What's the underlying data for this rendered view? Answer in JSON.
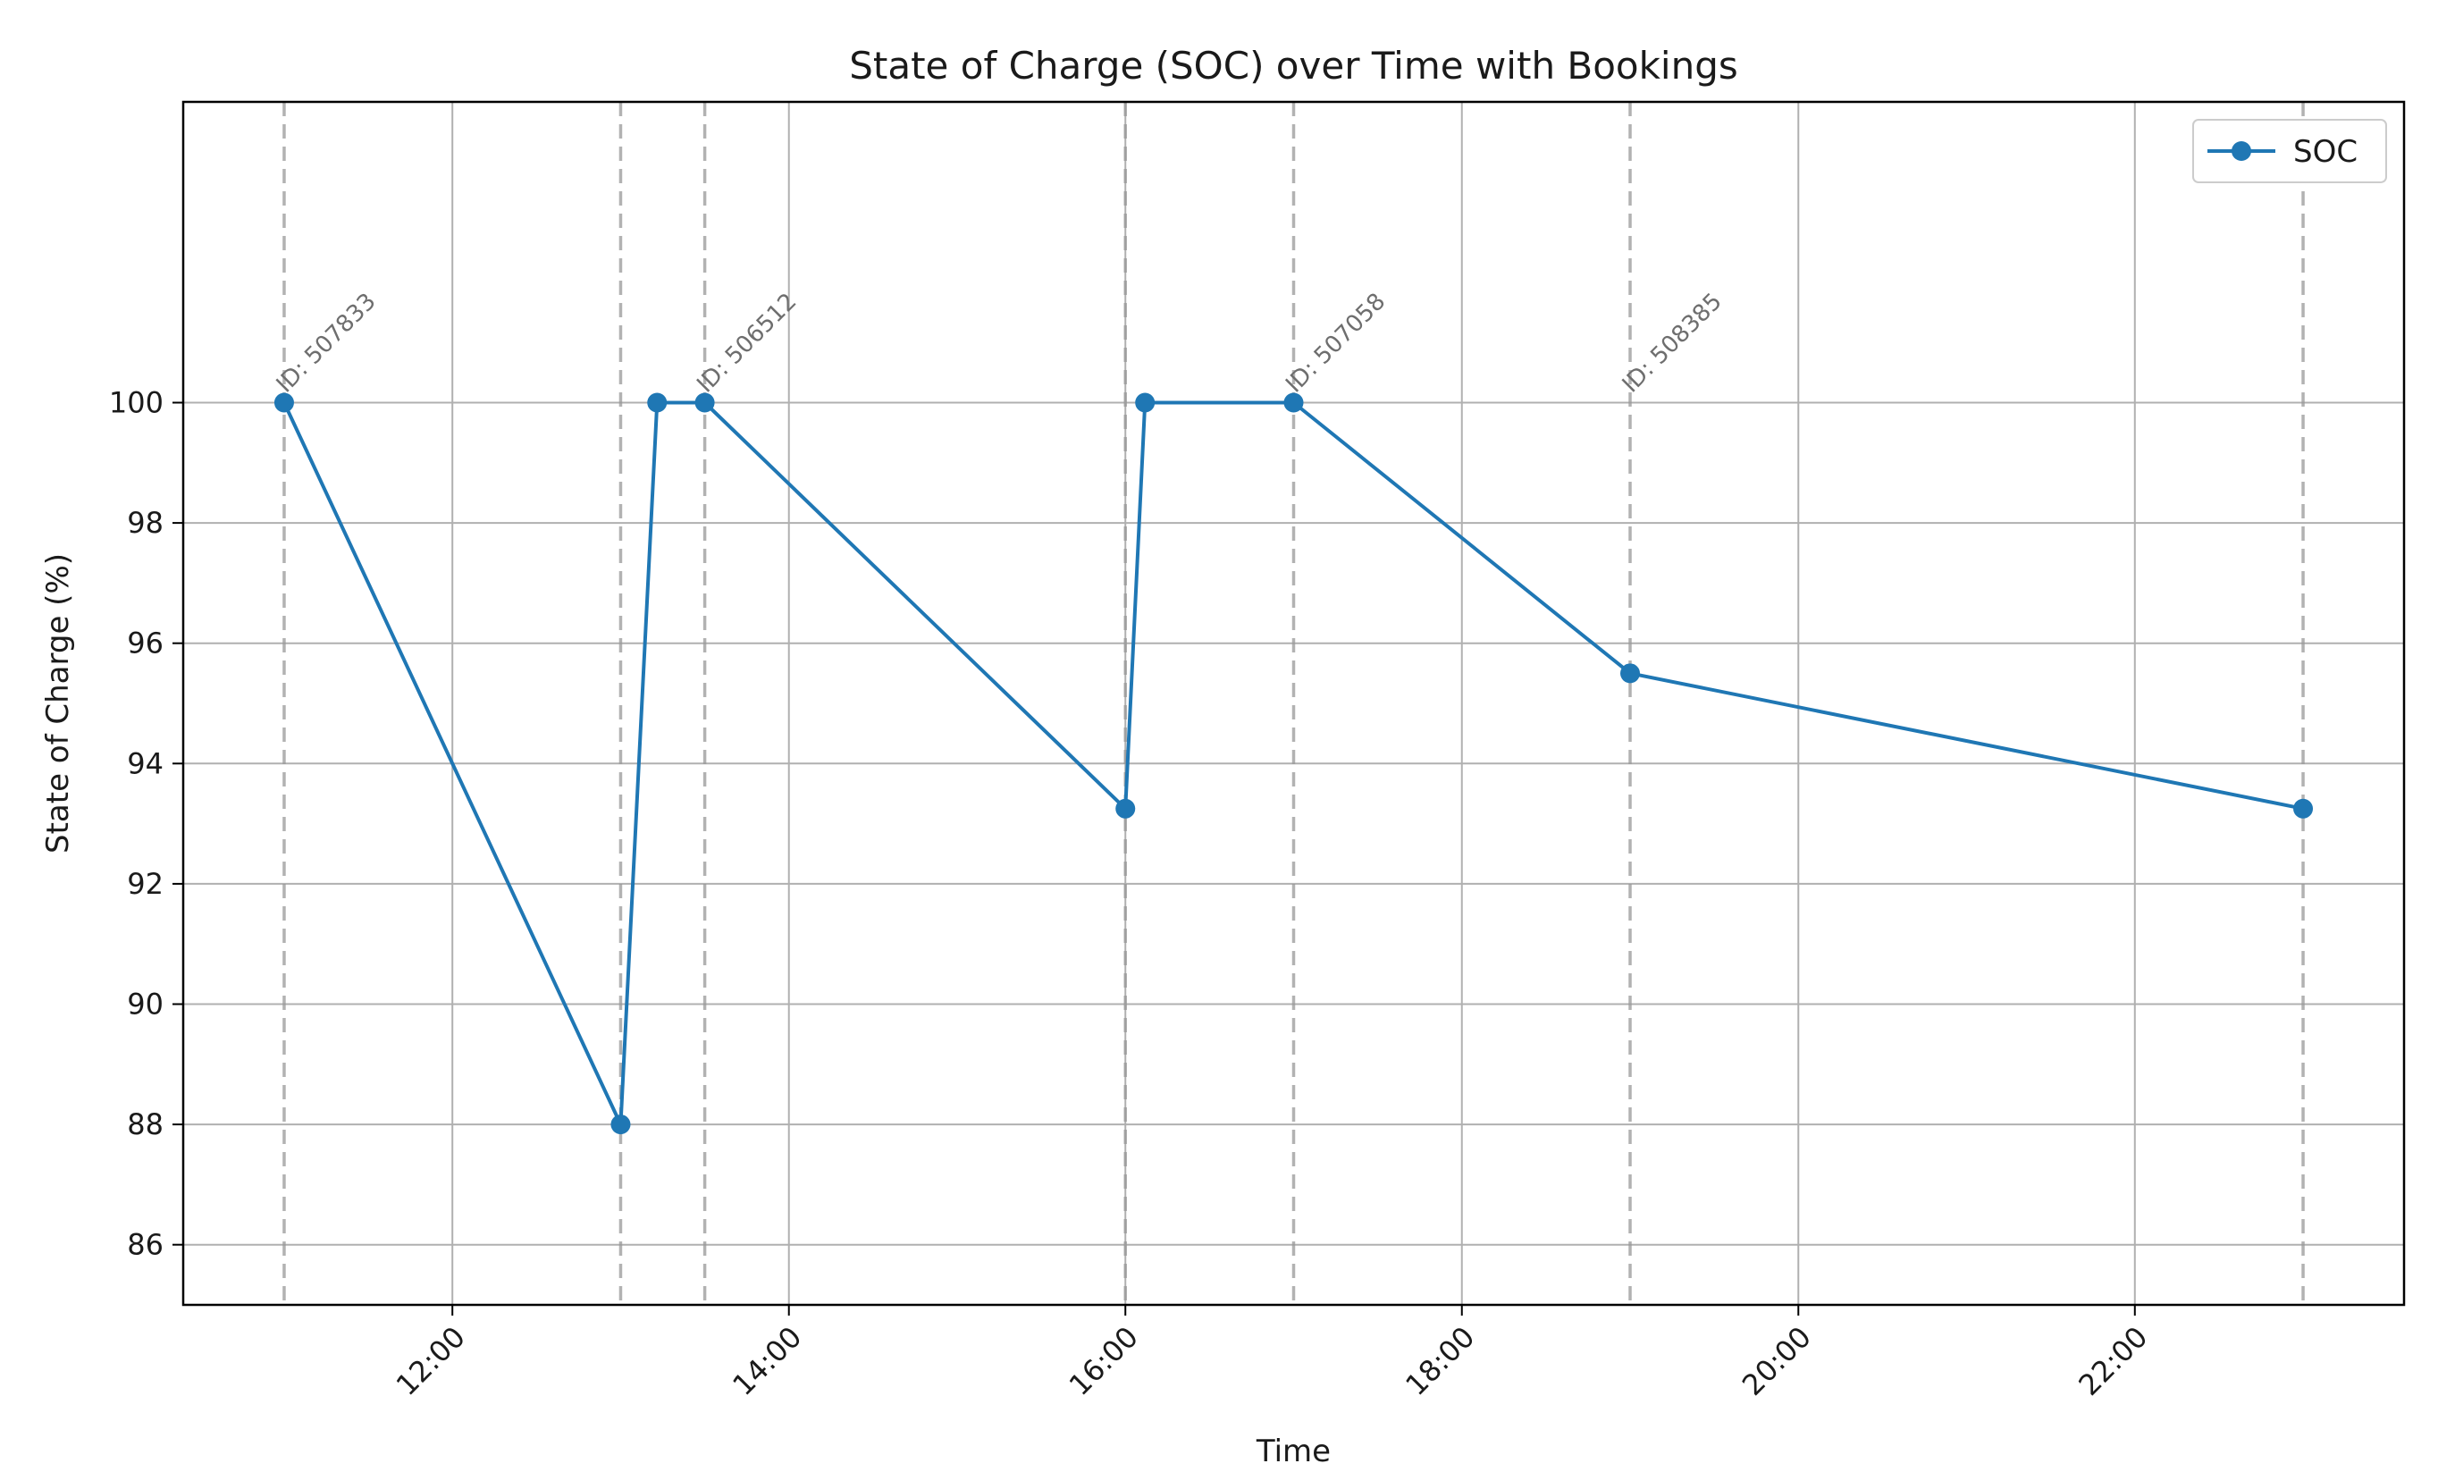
{
  "chart_data": {
    "type": "line",
    "title": "State of Charge (SOC) over Time with Bookings",
    "xlabel": "Time",
    "ylabel": "State of Charge (%)",
    "xlim": [
      "10:24",
      "23:36"
    ],
    "ylim": [
      85,
      105
    ],
    "x_ticks": [
      "12:00",
      "14:00",
      "16:00",
      "18:00",
      "20:00",
      "22:00"
    ],
    "y_ticks": [
      86,
      88,
      90,
      92,
      94,
      96,
      98,
      100
    ],
    "grid": true,
    "legend": {
      "position": "top-right",
      "entries": [
        "SOC"
      ]
    },
    "series": [
      {
        "name": "SOC",
        "color": "#1f77b4",
        "marker": "circle",
        "x": [
          "11:00",
          "13:00",
          "13:13",
          "13:30",
          "16:00",
          "16:07",
          "17:00",
          "19:00",
          "23:00"
        ],
        "y": [
          100,
          88,
          100,
          100,
          93.25,
          100,
          100,
          95.5,
          93.25
        ]
      }
    ],
    "booking_lines": {
      "color": "#999999",
      "style": "dashed",
      "x": [
        "11:00",
        "13:00",
        "13:30",
        "16:00",
        "17:00",
        "19:00",
        "23:00"
      ]
    },
    "annotations": [
      {
        "text": "ID: 507833",
        "x": "11:00"
      },
      {
        "text": "ID: 506512",
        "x": "13:30"
      },
      {
        "text": "ID: 507058",
        "x": "17:00"
      },
      {
        "text": "ID: 508385",
        "x": "19:00"
      }
    ]
  }
}
